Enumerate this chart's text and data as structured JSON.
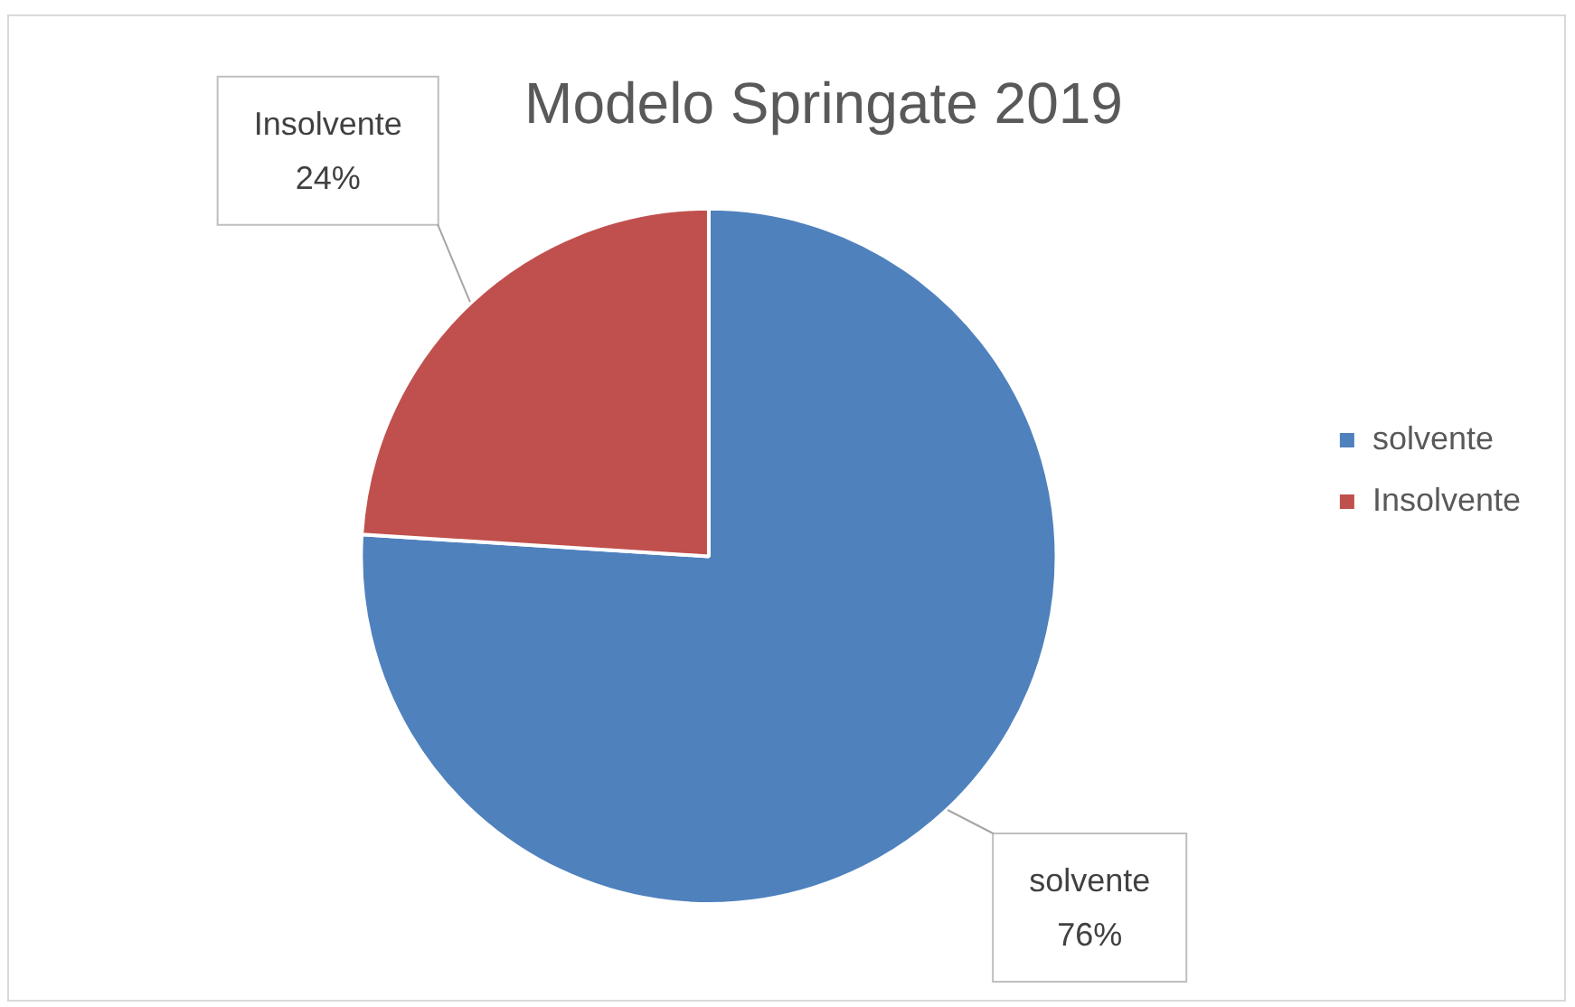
{
  "chart_data": {
    "type": "pie",
    "title": "Modelo Springate 2019",
    "categories": [
      "solvente",
      "Insolvente"
    ],
    "values": [
      76,
      24
    ],
    "colors": [
      "#4f81bd",
      "#c0504d"
    ],
    "value_labels": [
      "76%",
      "24%"
    ],
    "legend": "right"
  }
}
